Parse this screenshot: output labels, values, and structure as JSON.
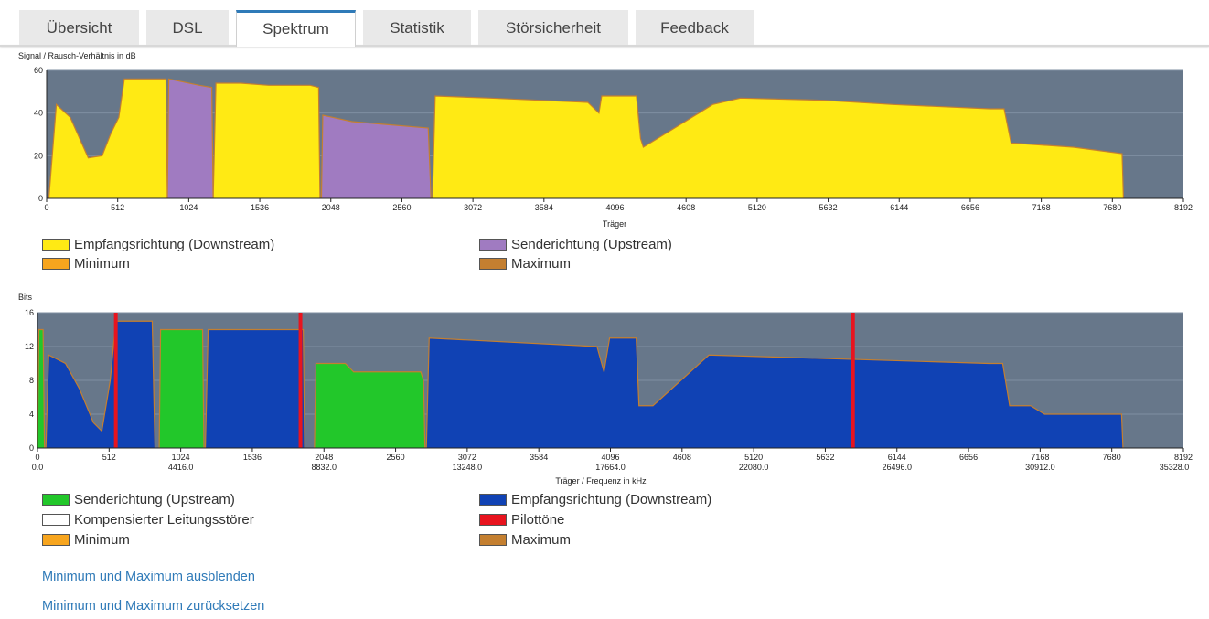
{
  "tabs": [
    {
      "label": "Übersicht",
      "active": false
    },
    {
      "label": "DSL",
      "active": false
    },
    {
      "label": "Spektrum",
      "active": true
    },
    {
      "label": "Statistik",
      "active": false
    },
    {
      "label": "Störsicherheit",
      "active": false
    },
    {
      "label": "Feedback",
      "active": false
    }
  ],
  "snr_chart": {
    "ylabel": "Signal / Rausch-Verhältnis in dB",
    "xlabel": "Träger",
    "legend": {
      "downstream": "Empfangsrichtung (Downstream)",
      "upstream": "Senderichtung (Upstream)",
      "minimum": "Minimum",
      "maximum": "Maximum"
    }
  },
  "bits_chart": {
    "ylabel": "Bits",
    "xlabel": "Träger / Frequenz in kHz",
    "legend": {
      "upstream": "Senderichtung (Upstream)",
      "downstream": "Empfangsrichtung (Downstream)",
      "compensated": "Kompensierter Leitungsstörer",
      "pilot": "Pilottöne",
      "minimum": "Minimum",
      "maximum": "Maximum"
    }
  },
  "links": {
    "hide_minmax": "Minimum und Maximum ausblenden",
    "reset_minmax": "Minimum und Maximum zurücksetzen"
  },
  "colors": {
    "plot_bg": "#67778a",
    "downstream_snr": "#ffea14",
    "upstream_snr": "#a07bc1",
    "downstream_bits": "#1042b4",
    "upstream_bits": "#22c72a",
    "pilot": "#e8141e",
    "minimum": "#f7a51e",
    "maximum": "#c47f30",
    "link": "#2f7ab8",
    "tab_active_border": "#2f7ab8"
  },
  "chart_data": [
    {
      "type": "area",
      "ylabel": "Signal / Rausch-Verhältnis in dB",
      "xlabel": "Träger",
      "xlim": [
        0,
        8192
      ],
      "ylim": [
        0,
        60
      ],
      "xticks": [
        0,
        512,
        1024,
        1536,
        2048,
        2560,
        3072,
        3584,
        4096,
        4608,
        5120,
        5632,
        6144,
        6656,
        7168,
        7680,
        8192
      ],
      "yticks": [
        0,
        20,
        40,
        60
      ],
      "series": [
        {
          "name": "Empfangsrichtung (Downstream)",
          "segments": [
            [
              [
                16,
                0
              ],
              [
                70,
                44
              ],
              [
                170,
                38
              ],
              [
                300,
                19
              ],
              [
                400,
                20
              ],
              [
                460,
                30
              ],
              [
                520,
                38
              ],
              [
                560,
                56
              ],
              [
                860,
                56
              ],
              [
                870,
                0
              ]
            ],
            [
              [
                1200,
                0
              ],
              [
                1220,
                54
              ],
              [
                1400,
                54
              ],
              [
                1600,
                53
              ],
              [
                1900,
                53
              ],
              [
                1960,
                52
              ],
              [
                1970,
                0
              ]
            ],
            [
              [
                2780,
                0
              ],
              [
                2800,
                48
              ],
              [
                3200,
                47
              ],
              [
                3900,
                45
              ],
              [
                3980,
                40
              ],
              [
                4000,
                48
              ],
              [
                4250,
                48
              ],
              [
                4280,
                28
              ],
              [
                4300,
                24
              ],
              [
                4500,
                32
              ],
              [
                4800,
                44
              ],
              [
                5000,
                47
              ],
              [
                5600,
                46
              ],
              [
                6100,
                44
              ],
              [
                6800,
                42
              ],
              [
                6900,
                42
              ],
              [
                6950,
                26
              ],
              [
                7400,
                24
              ],
              [
                7750,
                21
              ],
              [
                7760,
                0
              ]
            ]
          ]
        },
        {
          "name": "Senderichtung (Upstream)",
          "segments": [
            [
              [
                870,
                0
              ],
              [
                880,
                56
              ],
              [
                1100,
                53
              ],
              [
                1190,
                52
              ],
              [
                1200,
                0
              ]
            ],
            [
              [
                1980,
                0
              ],
              [
                1990,
                39
              ],
              [
                2200,
                36
              ],
              [
                2750,
                33
              ],
              [
                2770,
                0
              ]
            ]
          ]
        }
      ],
      "pilot_tones": [],
      "grid": true,
      "legend_placement": "bottom"
    },
    {
      "type": "area",
      "ylabel": "Bits",
      "xlabel": "Träger / Frequenz in kHz",
      "xlim": [
        0,
        8192
      ],
      "ylim": [
        0,
        16
      ],
      "xticks": [
        0,
        512,
        1024,
        1536,
        2048,
        2560,
        3072,
        3584,
        4096,
        4608,
        5120,
        5632,
        6144,
        6656,
        7168,
        7680,
        8192
      ],
      "freq_ticks": [
        {
          "x": 0,
          "label": "0.0"
        },
        {
          "x": 1024,
          "label": "4416.0"
        },
        {
          "x": 2048,
          "label": "8832.0"
        },
        {
          "x": 3072,
          "label": "13248.0"
        },
        {
          "x": 4096,
          "label": "17664.0"
        },
        {
          "x": 5120,
          "label": "22080.0"
        },
        {
          "x": 6144,
          "label": "26496.0"
        },
        {
          "x": 7168,
          "label": "30912.0"
        },
        {
          "x": 8192,
          "label": "35328.0"
        }
      ],
      "yticks": [
        0,
        4,
        8,
        12,
        16
      ],
      "series": [
        {
          "name": "Empfangsrichtung (Downstream)",
          "segments": [
            [
              [
                60,
                0
              ],
              [
                80,
                11
              ],
              [
                200,
                10
              ],
              [
                300,
                7
              ],
              [
                400,
                3
              ],
              [
                460,
                2
              ],
              [
                520,
                8
              ],
              [
                560,
                15
              ],
              [
                820,
                15
              ],
              [
                840,
                0
              ]
            ],
            [
              [
                1200,
                0
              ],
              [
                1220,
                14
              ],
              [
                1900,
                14
              ],
              [
                1910,
                0
              ]
            ],
            [
              [
                2780,
                0
              ],
              [
                2800,
                13
              ],
              [
                4000,
                12
              ],
              [
                4050,
                9
              ],
              [
                4090,
                13
              ],
              [
                4280,
                13
              ],
              [
                4300,
                5
              ],
              [
                4400,
                5
              ],
              [
                4600,
                8
              ],
              [
                4800,
                11
              ],
              [
                6800,
                10
              ],
              [
                6900,
                10
              ],
              [
                6950,
                5
              ],
              [
                7100,
                5
              ],
              [
                7200,
                4
              ],
              [
                7750,
                4
              ],
              [
                7760,
                0
              ]
            ]
          ]
        },
        {
          "name": "Senderichtung (Upstream)",
          "segments": [
            [
              [
                0,
                0
              ],
              [
                10,
                14
              ],
              [
                40,
                14
              ],
              [
                50,
                0
              ]
            ],
            [
              [
                870,
                0
              ],
              [
                880,
                14
              ],
              [
                1180,
                14
              ],
              [
                1190,
                0
              ]
            ],
            [
              [
                1980,
                0
              ],
              [
                1990,
                10
              ],
              [
                2200,
                10
              ],
              [
                2260,
                9
              ],
              [
                2740,
                9
              ],
              [
                2760,
                8
              ],
              [
                2770,
                0
              ]
            ]
          ]
        }
      ],
      "pilot_tones": [
        560,
        1880,
        5830
      ],
      "grid": true,
      "legend_placement": "bottom"
    }
  ]
}
